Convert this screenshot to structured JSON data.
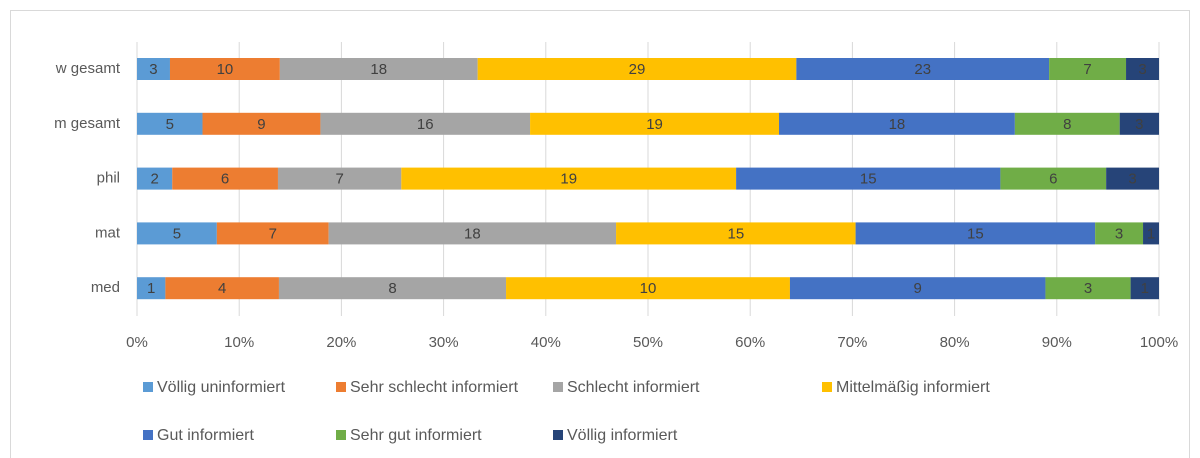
{
  "chart_data": {
    "type": "bar",
    "orientation": "horizontal",
    "stacking": "percent",
    "categories": [
      "w gesamt",
      "m gesamt",
      "phil",
      "mat",
      "med"
    ],
    "series": [
      {
        "name": "Völlig uninformiert",
        "color": "#5b9bd5",
        "values": [
          3,
          5,
          2,
          5,
          1
        ]
      },
      {
        "name": "Sehr schlecht informiert",
        "color": "#ed7d31",
        "values": [
          10,
          9,
          6,
          7,
          4
        ]
      },
      {
        "name": "Schlecht informiert",
        "color": "#a5a5a5",
        "values": [
          18,
          16,
          7,
          18,
          8
        ]
      },
      {
        "name": "Mittelmäßig informiert",
        "color": "#ffc000",
        "values": [
          29,
          19,
          19,
          15,
          10
        ]
      },
      {
        "name": "Gut informiert",
        "color": "#4472c4",
        "values": [
          23,
          18,
          15,
          15,
          9
        ]
      },
      {
        "name": "Sehr gut informiert",
        "color": "#70ad47",
        "values": [
          7,
          8,
          6,
          3,
          3
        ]
      },
      {
        "name": "Völlig informiert",
        "color": "#264478",
        "values": [
          3,
          3,
          3,
          1,
          1
        ]
      }
    ],
    "xlim": [
      0,
      100
    ],
    "xticks": [
      {
        "value": 0,
        "label": "0%"
      },
      {
        "value": 10,
        "label": "10%"
      },
      {
        "value": 20,
        "label": "20%"
      },
      {
        "value": 30,
        "label": "30%"
      },
      {
        "value": 40,
        "label": "40%"
      },
      {
        "value": 50,
        "label": "50%"
      },
      {
        "value": 60,
        "label": "60%"
      },
      {
        "value": 70,
        "label": "70%"
      },
      {
        "value": 80,
        "label": "80%"
      },
      {
        "value": 90,
        "label": "90%"
      },
      {
        "value": 100,
        "label": "100%"
      }
    ],
    "grid": true,
    "legend": "bottom"
  }
}
